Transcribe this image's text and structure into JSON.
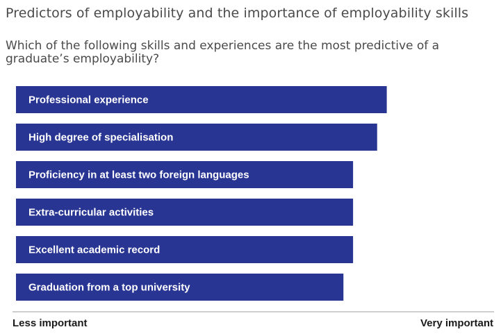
{
  "colors": {
    "bar": "#283593",
    "bar_text": "#ffffff",
    "axis_line": "#bdbdbd",
    "title": "#4a4a4a"
  },
  "chart_data": {
    "type": "bar",
    "orientation": "horizontal",
    "title": "Predictors of employability and the importance of employability skills",
    "subtitle": "Which of the following skills and experiences are the most predictive of a graduate’s employability?",
    "categories": [
      "Professional experience",
      "High degree of specialisation",
      "Proficiency in at least two foreign languages",
      "Extra-curricular activities",
      "Excellent academic record",
      "Graduation from a top university"
    ],
    "values": [
      77,
      75,
      70,
      70,
      70,
      68
    ],
    "xlim": [
      0,
      100
    ],
    "xlabel_left": "Less important",
    "xlabel_right": "Very important",
    "grid": false,
    "legend": "none"
  }
}
